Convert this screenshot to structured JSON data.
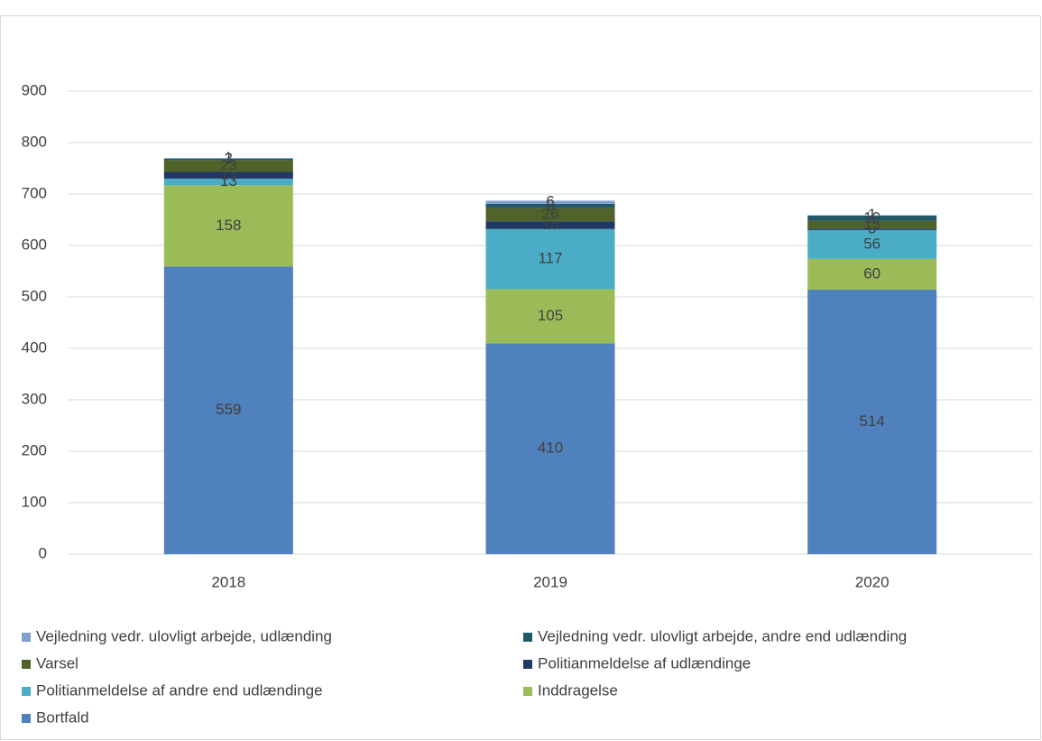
{
  "chart_data": {
    "type": "stacked_bar",
    "categories": [
      "2018",
      "2019",
      "2020"
    ],
    "series": [
      {
        "name": "Bortfald",
        "color": "#4f81bd",
        "values": [
          559,
          410,
          514
        ]
      },
      {
        "name": "Inddragelse",
        "color": "#9bbb59",
        "values": [
          158,
          105,
          60
        ]
      },
      {
        "name": "Politianmeldelse af andre end udlændinge",
        "color": "#4bacc6",
        "values": [
          13,
          117,
          56
        ]
      },
      {
        "name": "Politianmeldelse af udlændinge",
        "color": "#1f3864",
        "values": [
          13,
          15,
          3
        ]
      },
      {
        "name": "Varsel",
        "color": "#4f6228",
        "values": [
          23,
          26,
          15
        ]
      },
      {
        "name": "Vejledning vedr. ulovligt arbejde, andre end udlænding",
        "color": "#215968",
        "values": [
          3,
          8,
          10
        ]
      },
      {
        "name": "Vejledning vedr. ulovligt arbejde, udlænding",
        "color": "#7f9fcf",
        "values": [
          1,
          6,
          1
        ]
      }
    ],
    "ylim": [
      0,
      900
    ],
    "yticks": [
      0,
      100,
      200,
      300,
      400,
      500,
      600,
      700,
      800,
      900
    ],
    "grid": true
  }
}
